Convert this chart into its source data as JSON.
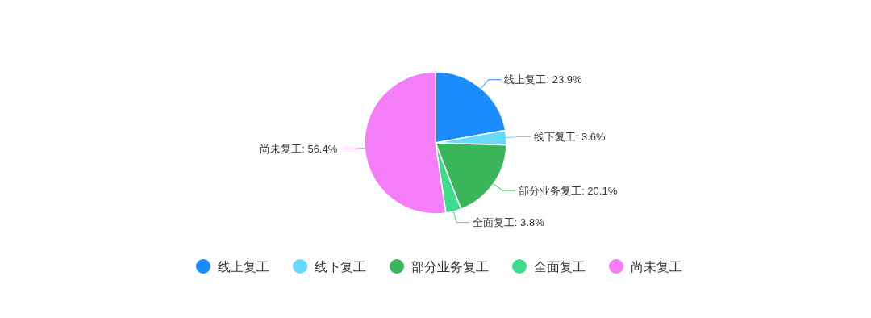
{
  "chart_data": {
    "type": "pie",
    "categories": [
      "线上复工",
      "线下复工",
      "部分业务复工",
      "全面复工",
      "尚未复工"
    ],
    "values": [
      23.9,
      3.6,
      20.1,
      3.8,
      56.4
    ],
    "value_labels": [
      "线上复工: 23.9%",
      "线下复工: 3.6%",
      "部分业务复工: 20.1%",
      "全面复工: 3.8%",
      "尚未复工: 56.4%"
    ],
    "colors": [
      "#1a8cff",
      "#66d9ff",
      "#3bb55a",
      "#3ddc8b",
      "#f47ef7"
    ],
    "legend": "bottom"
  }
}
